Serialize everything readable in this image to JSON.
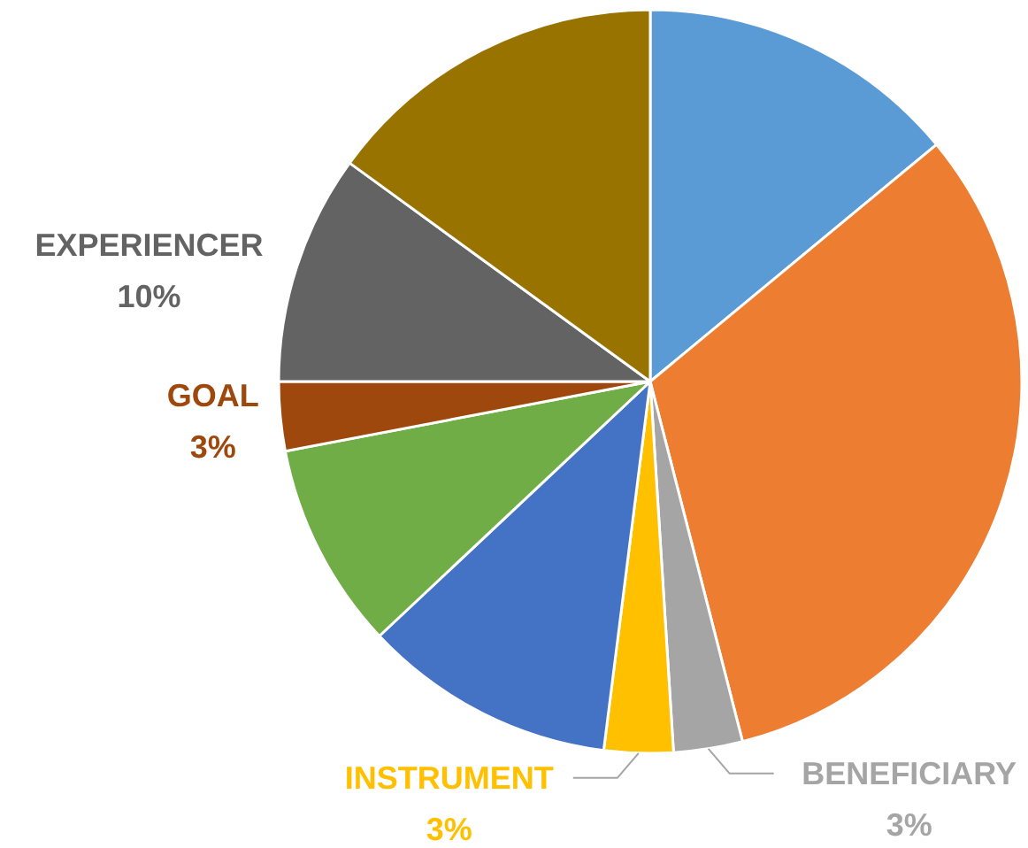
{
  "chart_data": {
    "type": "pie",
    "categories": [
      null,
      null,
      "BENEFICIARY",
      "INSTRUMENT",
      null,
      null,
      "GOAL",
      "EXPERIENCER",
      null
    ],
    "values": [
      14,
      32,
      3,
      3,
      11,
      9,
      3,
      10,
      15
    ],
    "colors": [
      "#5b9bd5",
      "#ed7d31",
      "#a5a5a5",
      "#ffc000",
      "#4472c4",
      "#70ad47",
      "#9e480e",
      "#636363",
      "#997300"
    ],
    "value_labels": [
      null,
      null,
      "3%",
      "3%",
      null,
      null,
      "3%",
      "10%",
      null
    ]
  }
}
